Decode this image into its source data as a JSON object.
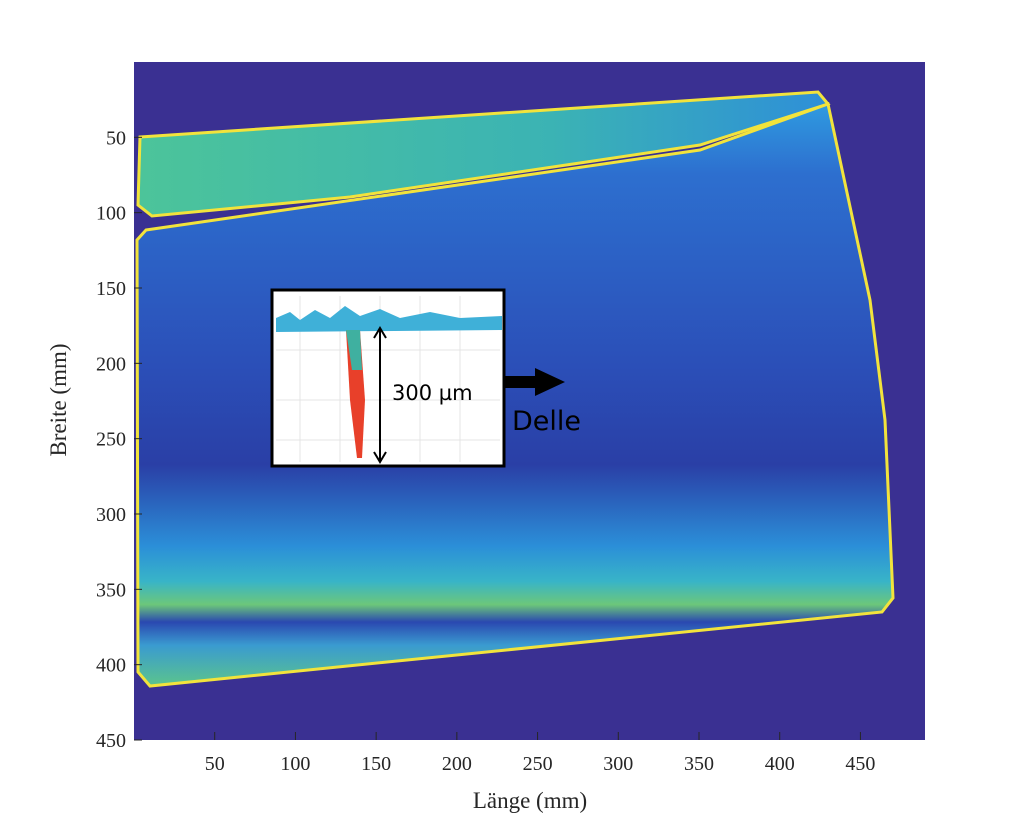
{
  "chart_data": {
    "type": "image",
    "xlabel": "Länge (mm)",
    "ylabel": "Breite (mm)",
    "xlim": [
      0,
      490
    ],
    "ylim": [
      0,
      450
    ],
    "y_reverse": true,
    "xticks": [
      50,
      100,
      150,
      200,
      250,
      300,
      350,
      400,
      450
    ],
    "yticks": [
      50,
      100,
      150,
      200,
      250,
      300,
      350,
      400,
      450
    ],
    "annotations": [
      "300 µm",
      "Delle"
    ]
  }
}
